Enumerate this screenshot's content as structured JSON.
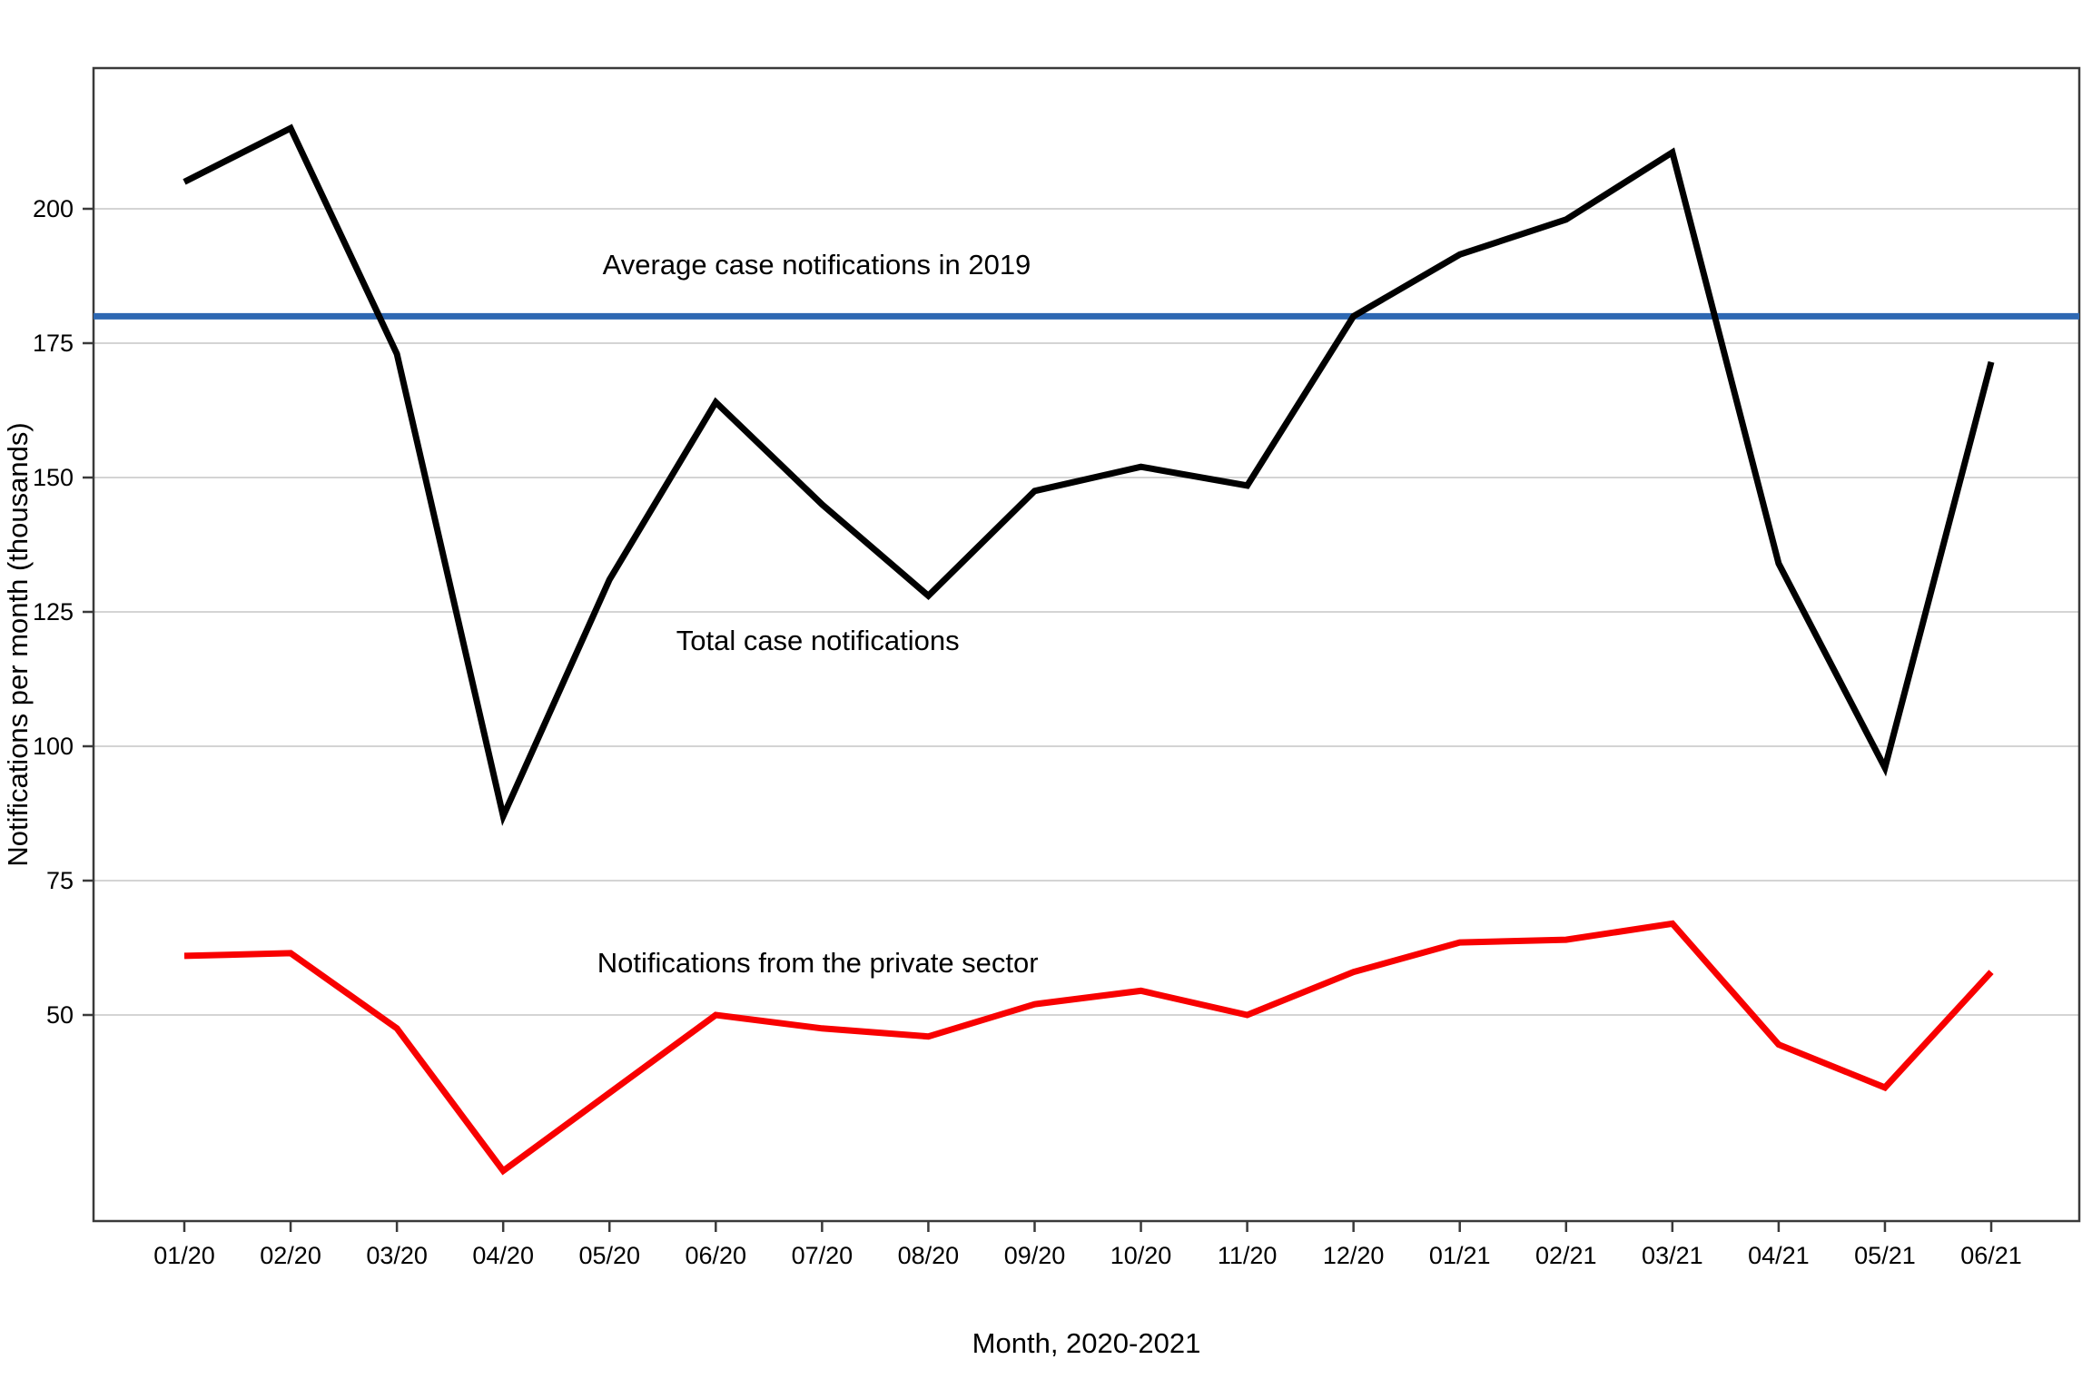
{
  "chart_data": {
    "type": "line",
    "title": "",
    "xlabel": "Month, 2020-2021",
    "ylabel": "Notifications per month (thousands)",
    "categories": [
      "01/20",
      "02/20",
      "03/20",
      "04/20",
      "05/20",
      "06/20",
      "07/20",
      "08/20",
      "09/20",
      "10/20",
      "11/20",
      "12/20",
      "01/21",
      "02/21",
      "03/21",
      "04/21",
      "05/21",
      "06/21"
    ],
    "y_ticks": [
      50,
      75,
      100,
      125,
      150,
      175,
      200
    ],
    "ylim": [
      11.7,
      226.2
    ],
    "grid": "horizontal-only",
    "legend": "none (direct line labels)",
    "series": [
      {
        "name": "Total case notifications",
        "color": "#000000",
        "values": [
          205,
          215,
          173,
          87,
          131,
          164,
          145,
          128,
          147.5,
          152,
          148.5,
          180,
          191.5,
          198,
          210.5,
          134,
          96,
          171.5
        ]
      },
      {
        "name": "Notifications from the private sector",
        "color": "#F80000",
        "values": [
          61,
          61.5,
          47.5,
          21,
          35.5,
          50,
          47.5,
          46,
          52,
          54.5,
          50,
          58,
          63.5,
          64,
          67,
          44.5,
          36.5,
          58
        ]
      }
    ],
    "reference_line": {
      "value": 180,
      "color": "#2E68B2",
      "label": "Average case notifications in 2019"
    },
    "annotations": [
      {
        "text": "Average case notifications in 2019",
        "color": "#2E68B2",
        "x_month": 5.95,
        "y_value": 189.5
      },
      {
        "text": "Total case notifications",
        "color": "#000000",
        "x_month": 5.96,
        "y_value": 119.6
      },
      {
        "text": "Notifications from the private sector",
        "color": "#F80000",
        "x_month": 5.96,
        "y_value": 59.6
      }
    ],
    "style_colors": {
      "gridline": "#D4D4D4",
      "axis_border": "#3A3A3A",
      "tick_text": "#000000"
    }
  }
}
